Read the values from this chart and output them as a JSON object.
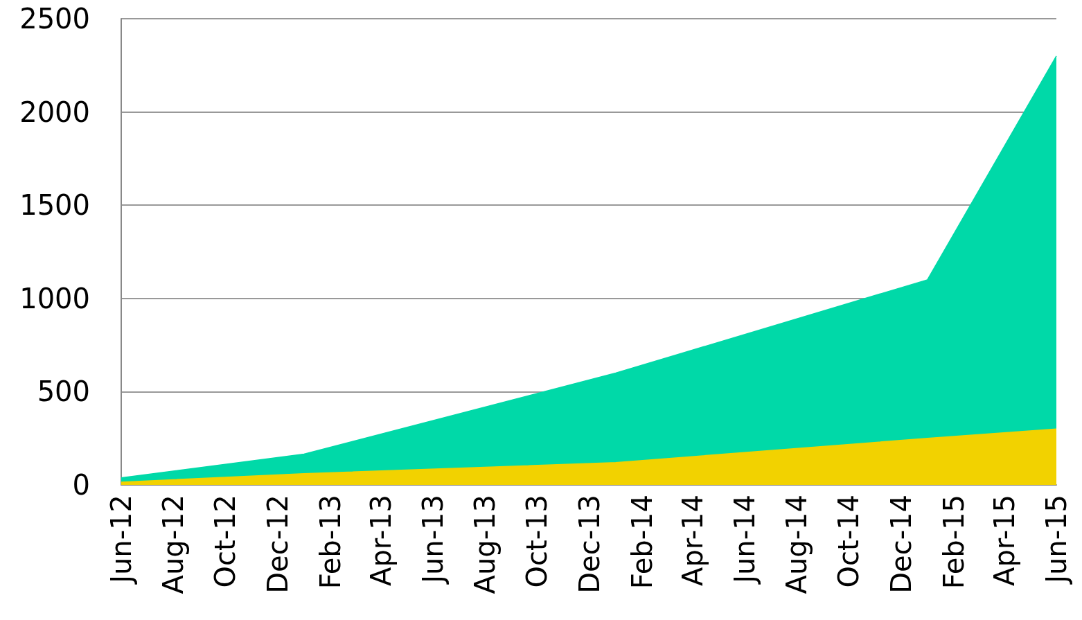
{
  "chart_data": {
    "type": "area",
    "x": [
      "2012-06",
      "2013-01",
      "2014-01",
      "2015-01",
      "2015-06"
    ],
    "series": [
      {
        "color": "#00d9a8",
        "values": [
          38,
          165,
          600,
          1100,
          2300
        ]
      },
      {
        "color": "#f2d200",
        "values": [
          15,
          60,
          120,
          250,
          300
        ]
      }
    ],
    "xlim": [
      "2012-06",
      "2015-06"
    ],
    "xticks": [
      {
        "value": "2012-06",
        "label": "Jun-12"
      },
      {
        "value": "2012-08",
        "label": "Aug-12"
      },
      {
        "value": "2012-10",
        "label": "Oct-12"
      },
      {
        "value": "2012-12",
        "label": "Dec-12"
      },
      {
        "value": "2013-02",
        "label": "Feb-13"
      },
      {
        "value": "2013-04",
        "label": "Apr-13"
      },
      {
        "value": "2013-06",
        "label": "Jun-13"
      },
      {
        "value": "2013-08",
        "label": "Aug-13"
      },
      {
        "value": "2013-10",
        "label": "Oct-13"
      },
      {
        "value": "2013-12",
        "label": "Dec-13"
      },
      {
        "value": "2014-02",
        "label": "Feb-14"
      },
      {
        "value": "2014-04",
        "label": "Apr-14"
      },
      {
        "value": "2014-06",
        "label": "Jun-14"
      },
      {
        "value": "2014-08",
        "label": "Aug-14"
      },
      {
        "value": "2014-10",
        "label": "Oct-14"
      },
      {
        "value": "2014-12",
        "label": "Dec-14"
      },
      {
        "value": "2015-02",
        "label": "Feb-15"
      },
      {
        "value": "2015-04",
        "label": "Apr-15"
      },
      {
        "value": "2015-06",
        "label": "Jun-15"
      }
    ],
    "ylim": [
      0,
      2500
    ],
    "yticks": [
      0,
      500,
      1000,
      1500,
      2000,
      2500
    ],
    "grid": "y"
  }
}
